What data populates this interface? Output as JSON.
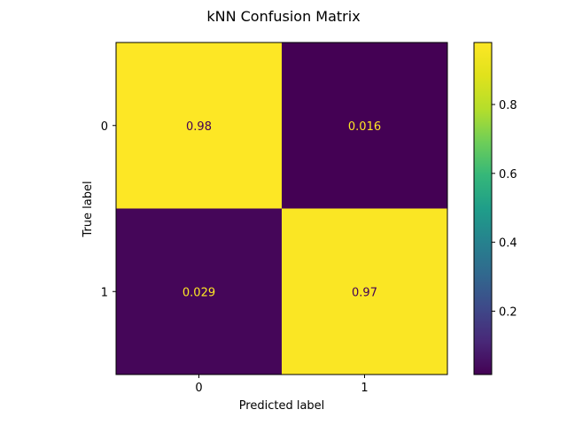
{
  "chart_data": {
    "type": "heatmap",
    "title": "kNN Confusion Matrix",
    "xlabel": "Predicted label",
    "ylabel": "True label",
    "x_categories": [
      "0",
      "1"
    ],
    "y_categories": [
      "0",
      "1"
    ],
    "values": [
      [
        0.98,
        0.016
      ],
      [
        0.029,
        0.97
      ]
    ],
    "value_labels": [
      [
        "0.98",
        "0.016"
      ],
      [
        "0.029",
        "0.97"
      ]
    ],
    "colormap": "viridis",
    "colorbar": {
      "range": [
        0.016,
        0.98
      ],
      "ticks": [
        0.2,
        0.4,
        0.6,
        0.8
      ],
      "tick_labels": [
        "0.2",
        "0.4",
        "0.6",
        "0.8"
      ]
    },
    "grid": false
  }
}
